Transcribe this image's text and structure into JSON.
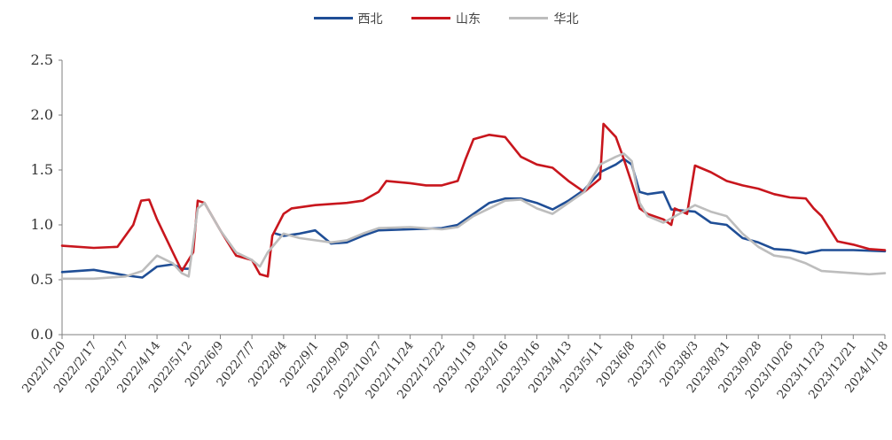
{
  "chart_data": {
    "type": "line",
    "title": "",
    "xlabel": "",
    "ylabel": "",
    "ylim": [
      0,
      2.5
    ],
    "yticks": [
      "0.0",
      "0.5",
      "1.0",
      "1.5",
      "2.0",
      "2.5"
    ],
    "xticks": [
      "2022/1/20",
      "2022/2/17",
      "2022/3/17",
      "2022/4/14",
      "2022/5/12",
      "2022/6/9",
      "2022/7/7",
      "2022/8/4",
      "2022/9/1",
      "2022/9/29",
      "2022/10/27",
      "2022/11/24",
      "2022/12/22",
      "2023/1/19",
      "2023/2/16",
      "2023/3/16",
      "2023/4/13",
      "2023/5/11",
      "2023/6/8",
      "2023/7/6",
      "2023/8/3",
      "2023/8/31",
      "2023/9/28",
      "2023/10/26",
      "2023/11/23",
      "2023/12/21",
      "2024/1/18"
    ],
    "legend_position": "top-center",
    "grid": false,
    "series": [
      {
        "name": "西北",
        "color": "#1f4e96",
        "points": [
          [
            "2022/1/20",
            0.57
          ],
          [
            "2022/2/17",
            0.59
          ],
          [
            "2022/3/17",
            0.54
          ],
          [
            "2022/4/1",
            0.52
          ],
          [
            "2022/4/14",
            0.62
          ],
          [
            "2022/4/28",
            0.64
          ],
          [
            "2022/5/6",
            0.6
          ],
          [
            "2022/5/12",
            0.6
          ],
          [
            null,
            null
          ],
          [
            "2022/7/28",
            0.92
          ],
          [
            "2022/8/4",
            0.9
          ],
          [
            "2022/8/18",
            0.92
          ],
          [
            "2022/9/1",
            0.95
          ],
          [
            "2022/9/15",
            0.83
          ],
          [
            "2022/9/29",
            0.84
          ],
          [
            "2022/10/13",
            0.9
          ],
          [
            "2022/10/27",
            0.95
          ],
          [
            "2022/11/24",
            0.96
          ],
          [
            "2022/12/22",
            0.97
          ],
          [
            "2023/1/5",
            1.0
          ],
          [
            "2023/1/19",
            1.1
          ],
          [
            "2023/2/2",
            1.2
          ],
          [
            "2023/2/16",
            1.24
          ],
          [
            "2023/3/2",
            1.24
          ],
          [
            "2023/3/16",
            1.2
          ],
          [
            "2023/3/30",
            1.14
          ],
          [
            "2023/4/13",
            1.22
          ],
          [
            "2023/4/27",
            1.32
          ],
          [
            "2023/5/11",
            1.48
          ],
          [
            "2023/5/25",
            1.55
          ],
          [
            "2023/6/1",
            1.6
          ],
          [
            "2023/6/8",
            1.55
          ],
          [
            "2023/6/15",
            1.3
          ],
          [
            "2023/6/22",
            1.28
          ],
          [
            "2023/7/6",
            1.3
          ],
          [
            "2023/7/13",
            1.14
          ],
          [
            "2023/8/3",
            1.12
          ],
          [
            "2023/8/17",
            1.02
          ],
          [
            "2023/8/31",
            1.0
          ],
          [
            "2023/9/14",
            0.88
          ],
          [
            "2023/9/28",
            0.84
          ],
          [
            "2023/10/12",
            0.78
          ],
          [
            "2023/10/26",
            0.77
          ],
          [
            "2023/11/9",
            0.74
          ],
          [
            "2023/11/23",
            0.77
          ],
          [
            "2023/12/7",
            0.77
          ],
          [
            "2023/12/21",
            0.77
          ],
          [
            "2024/1/18",
            0.76
          ]
        ]
      },
      {
        "name": "山东",
        "color": "#c8161d",
        "points": [
          [
            "2022/1/20",
            0.81
          ],
          [
            "2022/2/17",
            0.79
          ],
          [
            "2022/3/10",
            0.8
          ],
          [
            "2022/3/24",
            1.0
          ],
          [
            "2022/3/31",
            1.22
          ],
          [
            "2022/4/7",
            1.23
          ],
          [
            "2022/4/14",
            1.05
          ],
          [
            "2022/4/21",
            0.9
          ],
          [
            "2022/4/28",
            0.75
          ],
          [
            "2022/5/6",
            0.58
          ],
          [
            "2022/5/16",
            0.75
          ],
          [
            "2022/5/20",
            1.22
          ],
          [
            "2022/5/26",
            1.2
          ],
          [
            "2022/6/9",
            0.95
          ],
          [
            "2022/6/23",
            0.72
          ],
          [
            "2022/7/7",
            0.68
          ],
          [
            "2022/7/14",
            0.55
          ],
          [
            "2022/7/21",
            0.53
          ],
          [
            "2022/7/25",
            0.9
          ],
          [
            "2022/8/4",
            1.1
          ],
          [
            "2022/8/11",
            1.15
          ],
          [
            "2022/9/1",
            1.18
          ],
          [
            "2022/9/29",
            1.2
          ],
          [
            "2022/10/13",
            1.22
          ],
          [
            "2022/10/27",
            1.3
          ],
          [
            "2022/11/3",
            1.4
          ],
          [
            "2022/11/24",
            1.38
          ],
          [
            "2022/12/8",
            1.36
          ],
          [
            "2022/12/22",
            1.36
          ],
          [
            "2023/1/5",
            1.4
          ],
          [
            "2023/1/12",
            1.6
          ],
          [
            "2023/1/19",
            1.78
          ],
          [
            "2023/2/2",
            1.82
          ],
          [
            "2023/2/16",
            1.8
          ],
          [
            "2023/3/2",
            1.62
          ],
          [
            "2023/3/16",
            1.55
          ],
          [
            "2023/3/30",
            1.52
          ],
          [
            "2023/4/13",
            1.4
          ],
          [
            "2023/4/27",
            1.3
          ],
          [
            "2023/5/11",
            1.42
          ],
          [
            "2023/5/14",
            1.92
          ],
          [
            "2023/5/25",
            1.8
          ],
          [
            "2023/6/1",
            1.6
          ],
          [
            "2023/6/8",
            1.38
          ],
          [
            "2023/6/15",
            1.15
          ],
          [
            "2023/6/22",
            1.1
          ],
          [
            "2023/7/6",
            1.05
          ],
          [
            "2023/7/13",
            1.0
          ],
          [
            "2023/7/16",
            1.15
          ],
          [
            "2023/7/27",
            1.1
          ],
          [
            "2023/8/3",
            1.54
          ],
          [
            "2023/8/17",
            1.48
          ],
          [
            "2023/8/31",
            1.4
          ],
          [
            "2023/9/14",
            1.36
          ],
          [
            "2023/9/28",
            1.33
          ],
          [
            "2023/10/12",
            1.28
          ],
          [
            "2023/10/26",
            1.25
          ],
          [
            "2023/11/9",
            1.24
          ],
          [
            "2023/11/16",
            1.15
          ],
          [
            "2023/11/23",
            1.08
          ],
          [
            "2023/12/7",
            0.85
          ],
          [
            "2023/12/21",
            0.82
          ],
          [
            "2024/1/4",
            0.78
          ],
          [
            "2024/1/18",
            0.77
          ]
        ]
      },
      {
        "name": "华北",
        "color": "#bdbdbd",
        "points": [
          [
            "2022/1/20",
            0.51
          ],
          [
            "2022/2/17",
            0.51
          ],
          [
            "2022/3/17",
            0.53
          ],
          [
            "2022/4/1",
            0.58
          ],
          [
            "2022/4/14",
            0.72
          ],
          [
            "2022/4/28",
            0.65
          ],
          [
            "2022/5/6",
            0.56
          ],
          [
            "2022/5/12",
            0.53
          ],
          [
            "2022/5/20",
            1.15
          ],
          [
            "2022/5/26",
            1.2
          ],
          [
            "2022/6/9",
            0.95
          ],
          [
            "2022/6/23",
            0.75
          ],
          [
            "2022/7/7",
            0.68
          ],
          [
            "2022/7/14",
            0.62
          ],
          [
            "2022/7/21",
            0.75
          ],
          [
            "2022/8/4",
            0.92
          ],
          [
            "2022/8/18",
            0.88
          ],
          [
            "2022/9/1",
            0.86
          ],
          [
            "2022/9/15",
            0.84
          ],
          [
            "2022/9/29",
            0.86
          ],
          [
            "2022/10/13",
            0.92
          ],
          [
            "2022/10/27",
            0.97
          ],
          [
            "2022/11/24",
            0.98
          ],
          [
            "2022/12/22",
            0.96
          ],
          [
            "2023/1/5",
            0.98
          ],
          [
            "2023/1/19",
            1.08
          ],
          [
            "2023/2/2",
            1.15
          ],
          [
            "2023/2/16",
            1.22
          ],
          [
            "2023/3/2",
            1.23
          ],
          [
            "2023/3/16",
            1.15
          ],
          [
            "2023/3/30",
            1.1
          ],
          [
            "2023/4/13",
            1.2
          ],
          [
            "2023/4/27",
            1.3
          ],
          [
            "2023/5/11",
            1.55
          ],
          [
            "2023/5/25",
            1.62
          ],
          [
            "2023/6/1",
            1.65
          ],
          [
            "2023/6/8",
            1.58
          ],
          [
            "2023/6/15",
            1.2
          ],
          [
            "2023/6/22",
            1.08
          ],
          [
            "2023/7/6",
            1.02
          ],
          [
            "2023/7/20",
            1.1
          ],
          [
            "2023/8/3",
            1.18
          ],
          [
            "2023/8/17",
            1.12
          ],
          [
            "2023/8/31",
            1.08
          ],
          [
            "2023/9/14",
            0.92
          ],
          [
            "2023/9/28",
            0.8
          ],
          [
            "2023/10/12",
            0.72
          ],
          [
            "2023/10/26",
            0.7
          ],
          [
            "2023/11/9",
            0.65
          ],
          [
            "2023/11/23",
            0.58
          ],
          [
            "2023/12/7",
            0.57
          ],
          [
            "2023/12/21",
            0.56
          ],
          [
            "2024/1/4",
            0.55
          ],
          [
            "2024/1/18",
            0.56
          ]
        ]
      }
    ]
  }
}
